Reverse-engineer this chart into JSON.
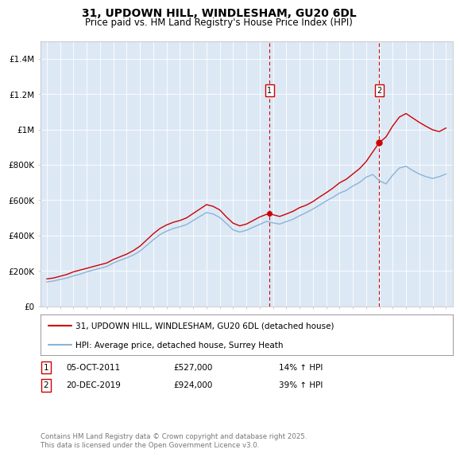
{
  "title": "31, UPDOWN HILL, WINDLESHAM, GU20 6DL",
  "subtitle": "Price paid vs. HM Land Registry's House Price Index (HPI)",
  "ylim": [
    0,
    1500000
  ],
  "yticks": [
    0,
    200000,
    400000,
    600000,
    800000,
    1000000,
    1200000,
    1400000
  ],
  "ytick_labels": [
    "£0",
    "£200K",
    "£400K",
    "£600K",
    "£800K",
    "£1M",
    "£1.2M",
    "£1.4M"
  ],
  "background_color": "#dde8f5",
  "red_color": "#cc0000",
  "blue_color": "#8ab4d4",
  "marker1_date_x": 2011.75,
  "marker1_price": 527000,
  "marker2_date_x": 2019.97,
  "marker2_price": 924000,
  "legend1": "31, UPDOWN HILL, WINDLESHAM, GU20 6DL (detached house)",
  "legend2": "HPI: Average price, detached house, Surrey Heath",
  "footer": "Contains HM Land Registry data © Crown copyright and database right 2025.\nThis data is licensed under the Open Government Licence v3.0.",
  "xmin": 1994.5,
  "xmax": 2025.5,
  "red_x": [
    1995.0,
    1995.5,
    1996.0,
    1996.5,
    1997.0,
    1997.5,
    1998.0,
    1998.5,
    1999.0,
    1999.5,
    2000.0,
    2000.5,
    2001.0,
    2001.5,
    2002.0,
    2002.5,
    2003.0,
    2003.5,
    2004.0,
    2004.5,
    2005.0,
    2005.5,
    2006.0,
    2006.5,
    2007.0,
    2007.5,
    2008.0,
    2008.5,
    2009.0,
    2009.5,
    2010.0,
    2010.5,
    2011.0,
    2011.75,
    2012.0,
    2012.5,
    2013.0,
    2013.5,
    2014.0,
    2014.5,
    2015.0,
    2015.5,
    2016.0,
    2016.5,
    2017.0,
    2017.5,
    2018.0,
    2018.5,
    2019.0,
    2019.97,
    2020.5,
    2021.0,
    2021.5,
    2022.0,
    2022.5,
    2023.0,
    2023.5,
    2024.0,
    2024.5,
    2025.0
  ],
  "red_y": [
    155000,
    160000,
    170000,
    180000,
    195000,
    205000,
    215000,
    225000,
    235000,
    245000,
    265000,
    280000,
    295000,
    315000,
    340000,
    375000,
    410000,
    440000,
    460000,
    475000,
    485000,
    500000,
    525000,
    550000,
    575000,
    565000,
    545000,
    505000,
    470000,
    455000,
    465000,
    485000,
    505000,
    527000,
    518000,
    508000,
    522000,
    537000,
    558000,
    572000,
    592000,
    618000,
    642000,
    668000,
    698000,
    718000,
    748000,
    778000,
    818000,
    924000,
    958000,
    1020000,
    1070000,
    1090000,
    1065000,
    1040000,
    1018000,
    998000,
    988000,
    1008000
  ],
  "blue_x": [
    1995.0,
    1995.5,
    1996.0,
    1996.5,
    1997.0,
    1997.5,
    1998.0,
    1998.5,
    1999.0,
    1999.5,
    2000.0,
    2000.5,
    2001.0,
    2001.5,
    2002.0,
    2002.5,
    2003.0,
    2003.5,
    2004.0,
    2004.5,
    2005.0,
    2005.5,
    2006.0,
    2006.5,
    2007.0,
    2007.5,
    2008.0,
    2008.5,
    2009.0,
    2009.5,
    2010.0,
    2010.5,
    2011.0,
    2011.5,
    2012.0,
    2012.5,
    2013.0,
    2013.5,
    2014.0,
    2014.5,
    2015.0,
    2015.5,
    2016.0,
    2016.5,
    2017.0,
    2017.5,
    2018.0,
    2018.5,
    2019.0,
    2019.5,
    2020.0,
    2020.5,
    2021.0,
    2021.5,
    2022.0,
    2022.5,
    2023.0,
    2023.5,
    2024.0,
    2024.5,
    2025.0
  ],
  "blue_y": [
    138000,
    143000,
    152000,
    160000,
    172000,
    182000,
    195000,
    205000,
    215000,
    225000,
    245000,
    260000,
    274000,
    290000,
    312000,
    344000,
    376000,
    405000,
    425000,
    440000,
    450000,
    462000,
    485000,
    508000,
    530000,
    522000,
    502000,
    468000,
    432000,
    420000,
    430000,
    447000,
    463000,
    480000,
    472000,
    465000,
    479000,
    492000,
    512000,
    530000,
    550000,
    572000,
    596000,
    616000,
    640000,
    655000,
    680000,
    700000,
    730000,
    745000,
    710000,
    692000,
    742000,
    782000,
    792000,
    768000,
    748000,
    733000,
    723000,
    733000,
    748000
  ]
}
